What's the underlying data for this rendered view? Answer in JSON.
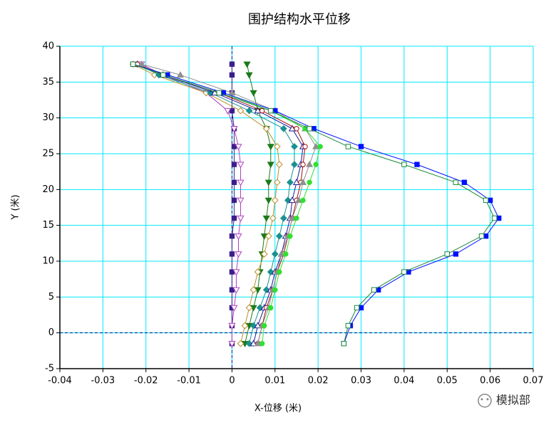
{
  "chart_data": {
    "type": "line",
    "title": "围护结构水平位移",
    "x_label": "X-位移 (米)",
    "y_label": "Y (米)",
    "xlim": [
      -0.04,
      0.07
    ],
    "xticks": [
      -0.04,
      -0.03,
      -0.02,
      -0.01,
      0,
      0.01,
      0.02,
      0.03,
      0.04,
      0.05,
      0.06,
      0.07
    ],
    "ylim": [
      -5,
      40
    ],
    "yticks": [
      -5,
      0,
      5,
      10,
      15,
      20,
      25,
      30,
      35,
      40
    ],
    "grid": true,
    "grid_color": "#00e8ff",
    "zero_lines": true,
    "y": [
      -1.5,
      1,
      3.5,
      6,
      8.5,
      11,
      13.5,
      16,
      18.5,
      21,
      23.5,
      26,
      28.5,
      31,
      33.5,
      36,
      37.5
    ],
    "series": [
      {
        "color": "#3a1f8c",
        "marker": "square",
        "filled": true,
        "values": [
          0,
          0,
          0,
          0,
          0,
          0,
          0,
          0.0005,
          0.0005,
          0.0005,
          0.0005,
          0.0005,
          0.0005,
          0,
          0,
          0,
          0
        ]
      },
      {
        "color": "#b040c0",
        "marker": "triangle-down",
        "filled": false,
        "values": [
          0,
          0,
          0.0005,
          0.001,
          0.001,
          0.0015,
          0.0015,
          0.002,
          0.002,
          0.002,
          0.002,
          0.0015,
          0.0005,
          -0.001,
          -0.006,
          -0.016,
          -0.021
        ]
      },
      {
        "color": "#1a7a1a",
        "marker": "triangle-down",
        "filled": true,
        "values": [
          0.003,
          0.004,
          0.005,
          0.006,
          0.0065,
          0.007,
          0.0075,
          0.008,
          0.0085,
          0.0085,
          0.009,
          0.009,
          0.008,
          0.006,
          0.005,
          0.004,
          0.0035
        ]
      },
      {
        "color": "#b8902a",
        "marker": "diamond",
        "filled": false,
        "values": [
          0.002,
          0.003,
          0.004,
          0.005,
          0.006,
          0.0075,
          0.0085,
          0.0095,
          0.01,
          0.0105,
          0.011,
          0.0105,
          0.008,
          0.002,
          -0.006,
          -0.018,
          -0.023
        ]
      },
      {
        "color": "#1a9090",
        "marker": "diamond",
        "filled": true,
        "values": [
          0.004,
          0.005,
          0.0065,
          0.008,
          0.009,
          0.01,
          0.011,
          0.012,
          0.013,
          0.0135,
          0.0145,
          0.0145,
          0.012,
          0.004,
          -0.005,
          -0.017,
          -0.022
        ]
      },
      {
        "color": "#1a1a9a",
        "marker": "triangle",
        "filled": false,
        "values": [
          0.005,
          0.006,
          0.0075,
          0.009,
          0.01,
          0.0115,
          0.0125,
          0.0135,
          0.014,
          0.015,
          0.016,
          0.0165,
          0.014,
          0.006,
          -0.004,
          -0.016,
          -0.022
        ]
      },
      {
        "color": "#a01010",
        "marker": "circle",
        "filled": false,
        "values": [
          0.006,
          0.007,
          0.008,
          0.0095,
          0.0105,
          0.012,
          0.013,
          0.014,
          0.015,
          0.016,
          0.0165,
          0.017,
          0.015,
          0.007,
          -0.003,
          -0.016,
          -0.022
        ]
      },
      {
        "color": "#909090",
        "marker": "triangle",
        "filled": true,
        "values": [
          0.006,
          0.007,
          0.0085,
          0.0095,
          0.0105,
          0.0115,
          0.013,
          0.014,
          0.0155,
          0.0165,
          0.018,
          0.0195,
          0.017,
          0.01,
          0,
          -0.012,
          -0.021
        ]
      },
      {
        "color": "#30e030",
        "marker": "circle",
        "filled": true,
        "values": [
          0.007,
          0.0075,
          0.009,
          0.01,
          0.011,
          0.0125,
          0.0135,
          0.015,
          0.0165,
          0.018,
          0.0195,
          0.0205,
          0.017,
          0.009,
          -0.002,
          -0.015,
          -0.023
        ]
      },
      {
        "color": "#0010ff",
        "marker": "square",
        "filled": true,
        "values": [
          0.026,
          0.0275,
          0.03,
          0.034,
          0.041,
          0.052,
          0.059,
          0.062,
          0.06,
          0.054,
          0.043,
          0.03,
          0.019,
          0.01,
          -0.002,
          -0.015,
          -0.023
        ]
      },
      {
        "color": "#1a8a3a",
        "marker": "square",
        "filled": false,
        "values": [
          0.026,
          0.027,
          0.029,
          0.033,
          0.04,
          0.05,
          0.058,
          0.061,
          0.059,
          0.052,
          0.04,
          0.027,
          0.018,
          0.009,
          -0.003,
          -0.016,
          -0.023
        ]
      }
    ]
  },
  "watermark": "模拟部"
}
